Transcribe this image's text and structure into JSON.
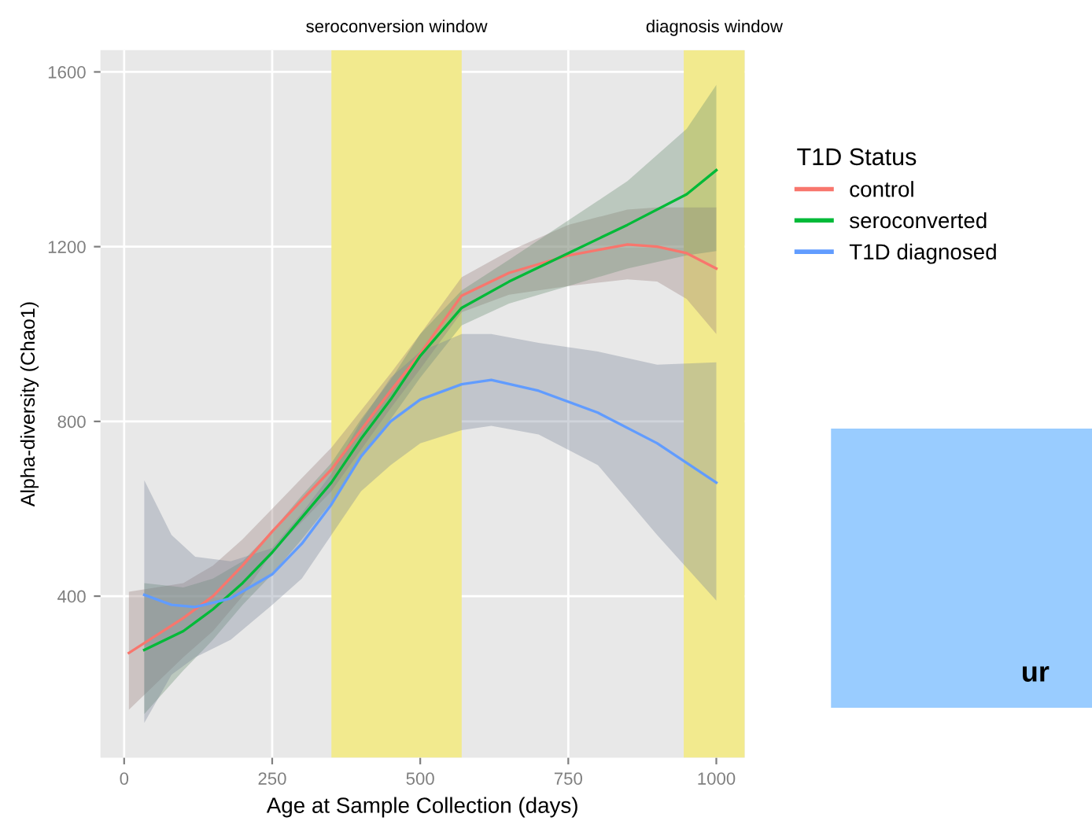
{
  "chart_data": {
    "type": "line",
    "xlabel": "Age at Sample Collection (days)",
    "ylabel": "Alpha-diversity (Chao1)",
    "legend_title": "T1D Status",
    "xlim": [
      -40,
      1048
    ],
    "ylim": [
      30,
      1650
    ],
    "xticks": [
      0,
      250,
      500,
      750,
      1000
    ],
    "yticks": [
      400,
      800,
      1200,
      1600
    ],
    "grid": true,
    "legend": "right",
    "marker": "none",
    "line_style": "solid",
    "bands": [
      {
        "axis": "x",
        "from": 350,
        "to": 570,
        "label": "seroconversion window",
        "color": "#f2ea8e"
      },
      {
        "axis": "x",
        "from": 945,
        "to": 1048,
        "label": "diagnosis window",
        "color": "#f2ea8e"
      }
    ],
    "series": [
      {
        "name": "control",
        "color": "#f8766d",
        "x": [
          8,
          100,
          150,
          200,
          250,
          300,
          350,
          400,
          450,
          500,
          570,
          650,
          750,
          850,
          900,
          950,
          1000
        ],
        "values": [
          270,
          350,
          400,
          470,
          548,
          620,
          690,
          780,
          870,
          955,
          1088,
          1140,
          1180,
          1205,
          1200,
          1185,
          1150
        ],
        "lower": [
          140,
          260,
          320,
          400,
          500,
          570,
          640,
          735,
          830,
          920,
          1050,
          1090,
          1110,
          1125,
          1120,
          1080,
          1000
        ],
        "upper": [
          410,
          430,
          470,
          530,
          600,
          670,
          740,
          825,
          910,
          1000,
          1130,
          1190,
          1250,
          1285,
          1290,
          1290,
          1290
        ]
      },
      {
        "name": "seroconverted",
        "color": "#00ba38",
        "x": [
          34,
          100,
          150,
          200,
          250,
          300,
          350,
          400,
          450,
          500,
          570,
          650,
          750,
          850,
          950,
          1000
        ],
        "values": [
          277,
          320,
          370,
          430,
          500,
          580,
          660,
          760,
          850,
          950,
          1060,
          1120,
          1185,
          1250,
          1320,
          1375
        ],
        "lower": [
          130,
          230,
          300,
          380,
          450,
          530,
          615,
          715,
          805,
          900,
          1020,
          1070,
          1110,
          1150,
          1180,
          1190
        ],
        "upper": [
          430,
          420,
          440,
          480,
          550,
          630,
          705,
          805,
          895,
          1000,
          1100,
          1170,
          1260,
          1350,
          1470,
          1570
        ]
      },
      {
        "name": "T1D diagnosed",
        "color": "#619cff",
        "x": [
          34,
          80,
          120,
          180,
          250,
          300,
          350,
          400,
          450,
          500,
          570,
          620,
          700,
          800,
          900,
          1000
        ],
        "values": [
          403,
          380,
          375,
          395,
          450,
          520,
          610,
          720,
          800,
          850,
          885,
          895,
          870,
          820,
          750,
          660
        ],
        "lower": [
          110,
          220,
          260,
          300,
          380,
          440,
          540,
          640,
          700,
          750,
          780,
          790,
          770,
          700,
          540,
          390
        ],
        "upper": [
          665,
          540,
          490,
          480,
          510,
          590,
          680,
          800,
          900,
          960,
          1000,
          1000,
          980,
          960,
          930,
          935
        ]
      }
    ],
    "annotations": [
      "ur"
    ]
  }
}
